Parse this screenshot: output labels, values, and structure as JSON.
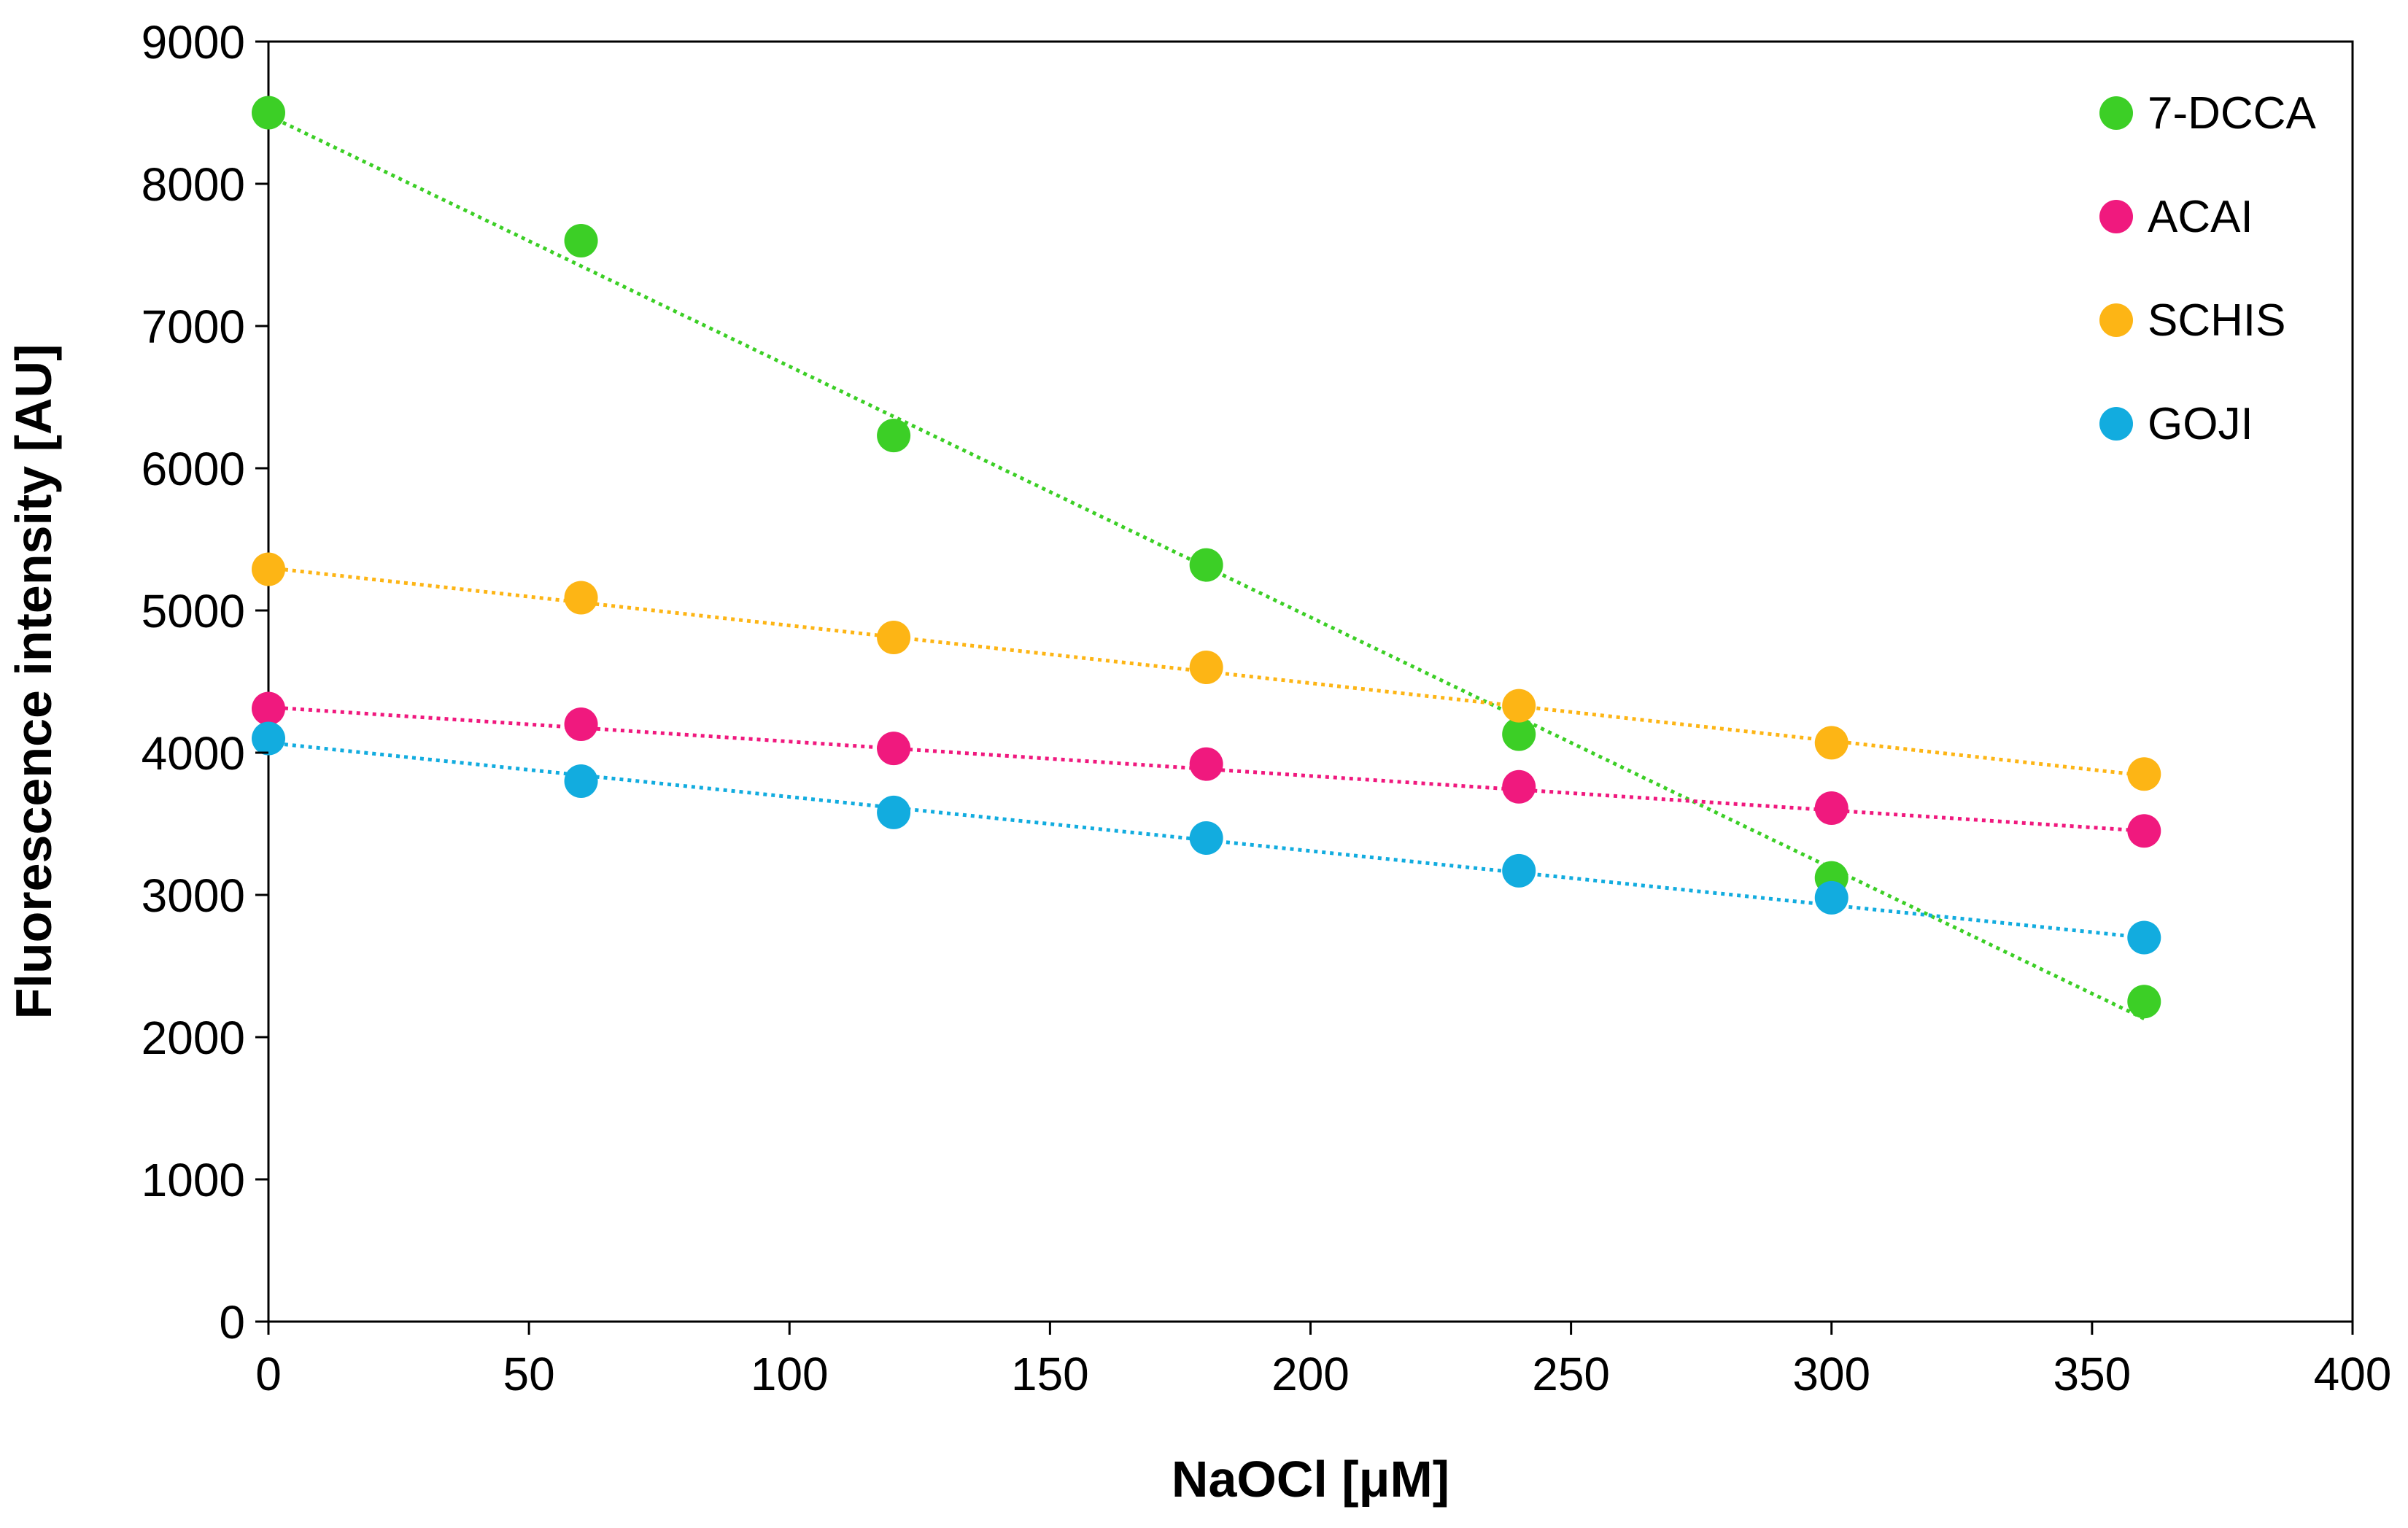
{
  "chart_data": {
    "type": "scatter",
    "title": "",
    "xlabel": "NaOCl [μM]",
    "ylabel": "Fluorescence intensity [AU]",
    "xlim": [
      0,
      400
    ],
    "ylim": [
      0,
      9000
    ],
    "x_ticks": [
      0,
      50,
      100,
      150,
      200,
      250,
      300,
      350,
      400
    ],
    "y_ticks": [
      0,
      1000,
      2000,
      3000,
      4000,
      5000,
      6000,
      7000,
      8000,
      9000
    ],
    "grid": false,
    "legend_position": "top-right",
    "trendline": "linear, dotted",
    "x": [
      0,
      60,
      120,
      180,
      240,
      300,
      360
    ],
    "series": [
      {
        "name": "7-DCCA",
        "color": "#3ccf26",
        "values": [
          8500,
          7600,
          6230,
          5320,
          4130,
          3120,
          2250
        ],
        "trend": [
          8480,
          2130
        ]
      },
      {
        "name": "ACAI",
        "color": "#f0197e",
        "values": [
          4310,
          4200,
          4030,
          3920,
          3760,
          3610,
          3450
        ],
        "trend": [
          4320,
          3450
        ]
      },
      {
        "name": "SCHIS",
        "color": "#fdb515",
        "values": [
          5290,
          5090,
          4810,
          4600,
          4330,
          4070,
          3850
        ],
        "trend": [
          5300,
          3840
        ]
      },
      {
        "name": "GOJI",
        "color": "#12acdf",
        "values": [
          4100,
          3800,
          3580,
          3400,
          3170,
          2980,
          2700
        ],
        "trend": [
          4070,
          2700
        ]
      }
    ]
  }
}
